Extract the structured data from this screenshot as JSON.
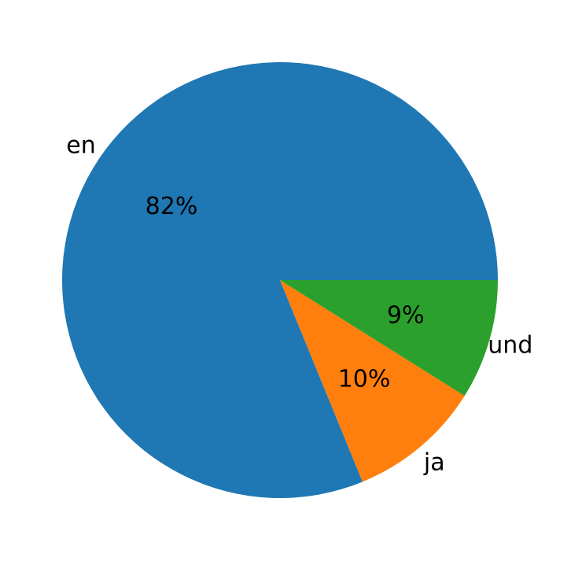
{
  "chart_data": {
    "type": "pie",
    "categories": [
      "en",
      "ja",
      "und"
    ],
    "values": [
      82,
      10,
      9
    ],
    "value_labels": [
      "82%",
      "10%",
      "9%"
    ],
    "colors": [
      "#1f77b4",
      "#ff7f0e",
      "#2ca02c"
    ]
  }
}
